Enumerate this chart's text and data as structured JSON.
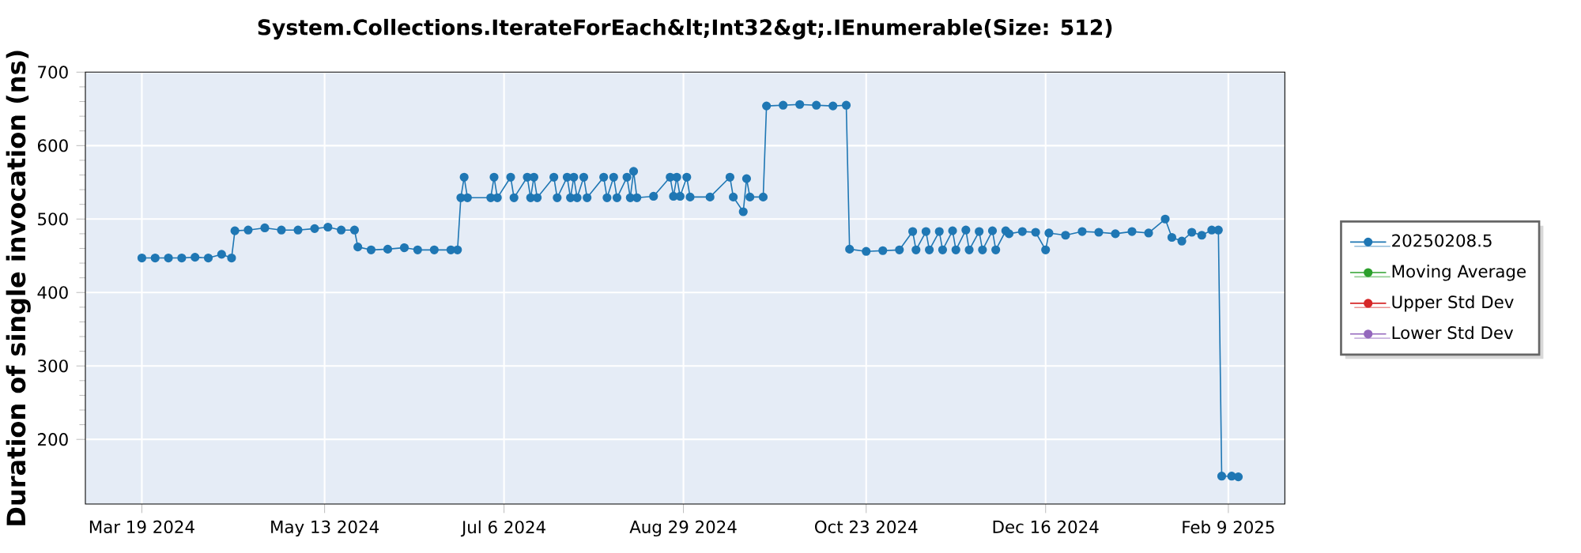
{
  "chart_data": {
    "type": "line",
    "title": "System.Collections.IterateForEach&lt;Int32&gt;.IEnumerable(Size: 512)",
    "ylabel": "Duration of single invocation (ns)",
    "xlim": [
      "2024-03-02",
      "2025-02-26"
    ],
    "ylim": [
      112,
      700
    ],
    "xticks": [
      {
        "value": "2024-03-19",
        "label": "Mar 19 2024"
      },
      {
        "value": "2024-05-13",
        "label": "May 13 2024"
      },
      {
        "value": "2024-07-06",
        "label": "Jul 6 2024"
      },
      {
        "value": "2024-08-29",
        "label": "Aug 29 2024"
      },
      {
        "value": "2024-10-23",
        "label": "Oct 23 2024"
      },
      {
        "value": "2024-12-16",
        "label": "Dec 16 2024"
      },
      {
        "value": "2025-02-09",
        "label": "Feb 9 2025"
      }
    ],
    "yticks": [
      200,
      300,
      400,
      500,
      600,
      700
    ],
    "grid": true,
    "legend": "right",
    "marker": "circle",
    "series": [
      {
        "name": "20250208.5",
        "color": "#1f77b4",
        "x": [
          "2024-03-19",
          "2024-03-23",
          "2024-03-27",
          "2024-03-31",
          "2024-04-04",
          "2024-04-08",
          "2024-04-12",
          "2024-04-15",
          "2024-04-16",
          "2024-04-20",
          "2024-04-25",
          "2024-04-30",
          "2024-05-05",
          "2024-05-10",
          "2024-05-14",
          "2024-05-18",
          "2024-05-22",
          "2024-05-23",
          "2024-05-27",
          "2024-06-01",
          "2024-06-06",
          "2024-06-10",
          "2024-06-15",
          "2024-06-20",
          "2024-06-22",
          "2024-06-23",
          "2024-06-24",
          "2024-06-25",
          "2024-07-02",
          "2024-07-03",
          "2024-07-04",
          "2024-07-08",
          "2024-07-09",
          "2024-07-13",
          "2024-07-14",
          "2024-07-15",
          "2024-07-16",
          "2024-07-21",
          "2024-07-22",
          "2024-07-25",
          "2024-07-26",
          "2024-07-27",
          "2024-07-28",
          "2024-07-30",
          "2024-07-31",
          "2024-08-05",
          "2024-08-06",
          "2024-08-08",
          "2024-08-09",
          "2024-08-12",
          "2024-08-13",
          "2024-08-14",
          "2024-08-15",
          "2024-08-20",
          "2024-08-25",
          "2024-08-26",
          "2024-08-27",
          "2024-08-28",
          "2024-08-30",
          "2024-08-31",
          "2024-09-06",
          "2024-09-12",
          "2024-09-13",
          "2024-09-16",
          "2024-09-17",
          "2024-09-18",
          "2024-09-22",
          "2024-09-23",
          "2024-09-28",
          "2024-10-03",
          "2024-10-08",
          "2024-10-13",
          "2024-10-17",
          "2024-10-18",
          "2024-10-23",
          "2024-10-28",
          "2024-11-02",
          "2024-11-06",
          "2024-11-07",
          "2024-11-10",
          "2024-11-11",
          "2024-11-14",
          "2024-11-15",
          "2024-11-18",
          "2024-11-19",
          "2024-11-22",
          "2024-11-23",
          "2024-11-26",
          "2024-11-27",
          "2024-11-30",
          "2024-12-01",
          "2024-12-04",
          "2024-12-05",
          "2024-12-09",
          "2024-12-13",
          "2024-12-16",
          "2024-12-17",
          "2024-12-22",
          "2024-12-27",
          "2025-01-01",
          "2025-01-06",
          "2025-01-11",
          "2025-01-16",
          "2025-01-21",
          "2025-01-23",
          "2025-01-26",
          "2025-01-29",
          "2025-02-01",
          "2025-02-04",
          "2025-02-06",
          "2025-02-07",
          "2025-02-10",
          "2025-02-12"
        ],
        "values": [
          447,
          447,
          447,
          447,
          448,
          447,
          452,
          447,
          484,
          485,
          488,
          485,
          485,
          487,
          489,
          485,
          485,
          462,
          458,
          459,
          461,
          458,
          458,
          458,
          458,
          529,
          557,
          529,
          529,
          557,
          529,
          557,
          529,
          557,
          529,
          557,
          529,
          557,
          529,
          557,
          529,
          557,
          529,
          557,
          529,
          557,
          529,
          557,
          529,
          557,
          529,
          565,
          529,
          531,
          557,
          531,
          557,
          531,
          557,
          530,
          530,
          557,
          530,
          510,
          555,
          530,
          530,
          654,
          655,
          656,
          655,
          654,
          655,
          459,
          456,
          457,
          458,
          483,
          458,
          483,
          458,
          483,
          458,
          484,
          458,
          485,
          458,
          483,
          458,
          484,
          458,
          484,
          480,
          483,
          482,
          458,
          481,
          478,
          483,
          482,
          480,
          483,
          481,
          500,
          475,
          470,
          482,
          478,
          485,
          485,
          150,
          150,
          149
        ]
      },
      {
        "name": "Moving Average",
        "color": "#2ca02c"
      },
      {
        "name": "Upper Std Dev",
        "color": "#d62728"
      },
      {
        "name": "Lower Std Dev",
        "color": "#9467bd"
      }
    ]
  }
}
